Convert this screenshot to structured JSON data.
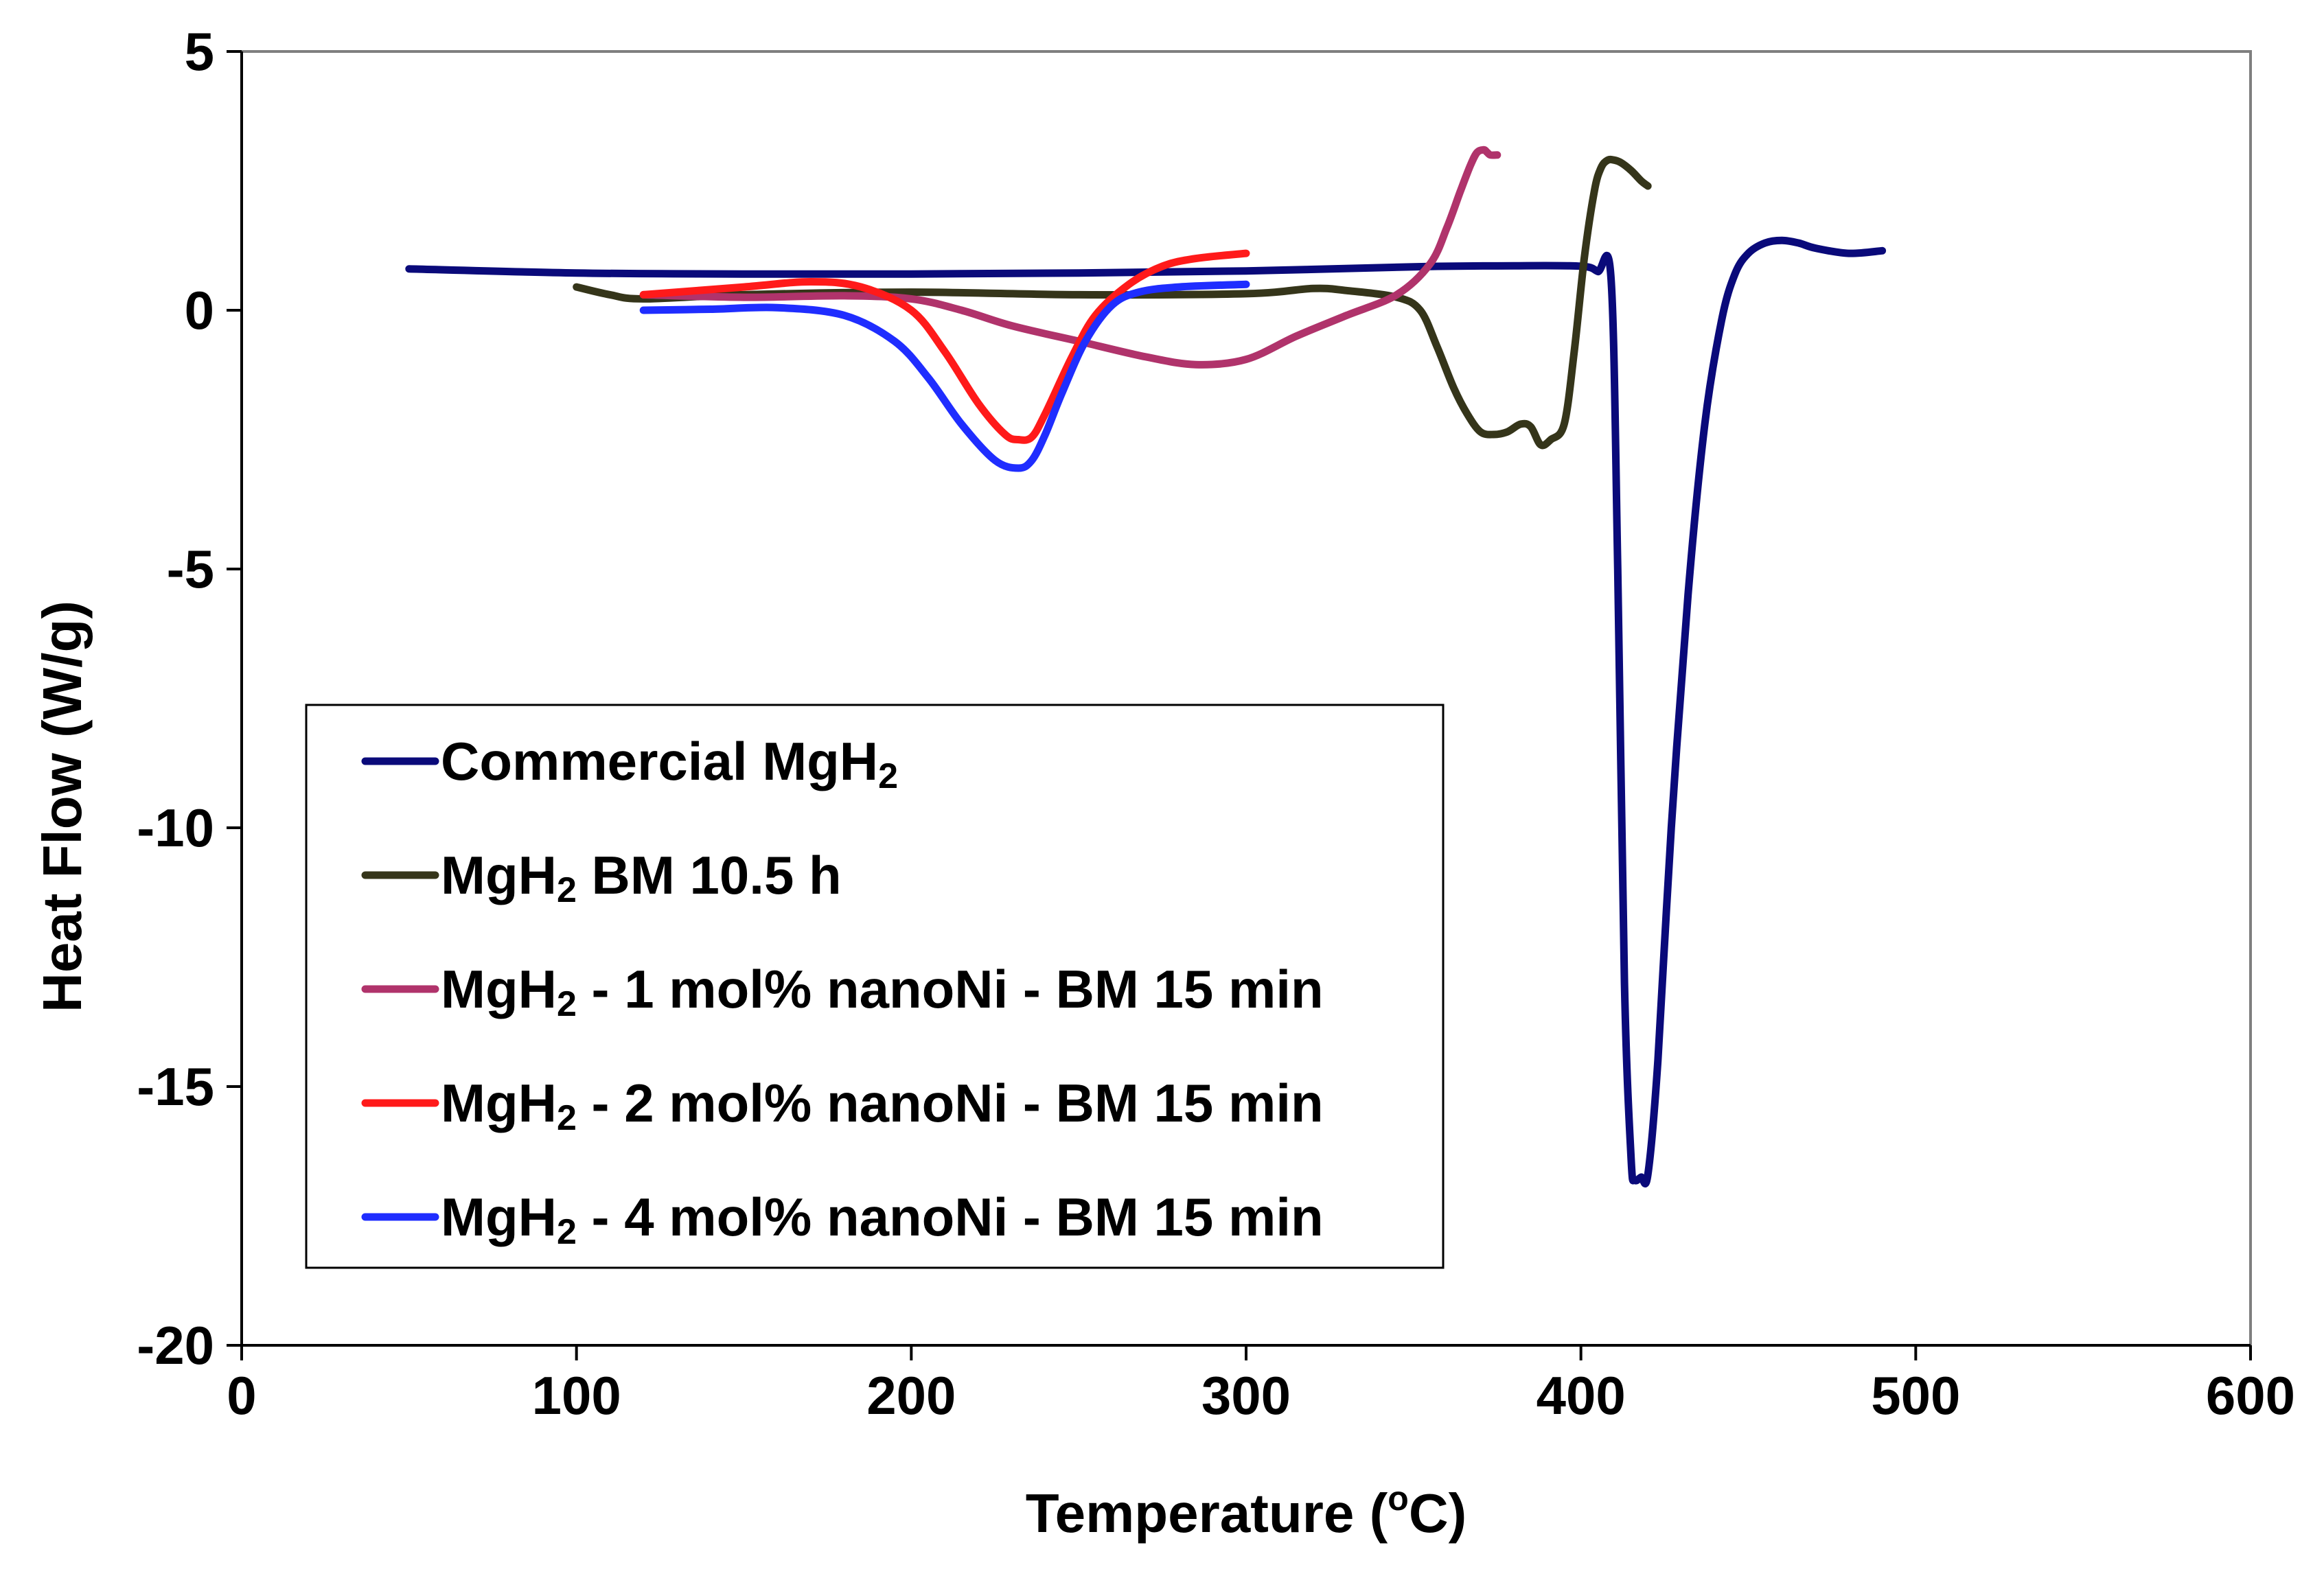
{
  "chart_data": {
    "type": "line",
    "title": "",
    "xlabel": "Temperature (",
    "xlabel_sup": "o",
    "xlabel_end": "C)",
    "ylabel": "Heat Flow (W/g)",
    "xlim": [
      0,
      600
    ],
    "ylim": [
      -20,
      5
    ],
    "xticks": [
      0,
      100,
      200,
      300,
      400,
      500,
      600
    ],
    "yticks": [
      5,
      0,
      -5,
      -10,
      -15,
      -20
    ],
    "grid": false,
    "legend_position": "lower-left",
    "series": [
      {
        "name": "Commercial MgH",
        "sub": "2",
        "suffix": "",
        "color": "#0a0a7a",
        "x": [
          50,
          100,
          150,
          200,
          250,
          300,
          350,
          380,
          400,
          405,
          409,
          411,
          413,
          415,
          416,
          418,
          420,
          423,
          427,
          432,
          437,
          442,
          446,
          450,
          455,
          460,
          465,
          470,
          480,
          490
        ],
        "y": [
          0.8,
          0.72,
          0.7,
          0.7,
          0.72,
          0.76,
          0.84,
          0.86,
          0.85,
          0.75,
          0.6,
          -5,
          -13,
          -16.4,
          -16.8,
          -16.75,
          -16.7,
          -14.5,
          -10,
          -5.5,
          -2.2,
          -0.2,
          0.7,
          1.1,
          1.3,
          1.35,
          1.3,
          1.2,
          1.1,
          1.15
        ]
      },
      {
        "name": "MgH",
        "sub": "2",
        "suffix": " BM 10.5 h",
        "color": "#35351a",
        "x": [
          100,
          110,
          120,
          150,
          200,
          250,
          300,
          320,
          330,
          345,
          352,
          357,
          362,
          366,
          370,
          374,
          378,
          382,
          385,
          388,
          391,
          395,
          398,
          401,
          404,
          406,
          408,
          410,
          412,
          415,
          418,
          420
        ],
        "y": [
          0.45,
          0.3,
          0.22,
          0.3,
          0.35,
          0.3,
          0.32,
          0.42,
          0.38,
          0.25,
          0.0,
          -0.7,
          -1.5,
          -2.0,
          -2.35,
          -2.4,
          -2.35,
          -2.2,
          -2.25,
          -2.6,
          -2.5,
          -2.2,
          -0.8,
          1.0,
          2.3,
          2.75,
          2.9,
          2.9,
          2.85,
          2.7,
          2.5,
          2.4
        ]
      },
      {
        "name": "MgH",
        "sub": "2",
        "suffix": " - 1 mol% nanoNi - BM 15 min",
        "color": "#b0336b",
        "x": [
          120,
          150,
          180,
          200,
          215,
          230,
          250,
          270,
          285,
          300,
          315,
          330,
          345,
          355,
          360,
          364,
          367,
          369,
          371,
          372,
          373,
          375
        ],
        "y": [
          0.3,
          0.25,
          0.28,
          0.22,
          0.0,
          -0.3,
          -0.6,
          -0.9,
          -1.05,
          -0.95,
          -0.5,
          -0.1,
          0.3,
          0.9,
          1.6,
          2.3,
          2.8,
          3.05,
          3.1,
          3.05,
          3.0,
          3.0
        ]
      },
      {
        "name": "MgH",
        "sub": "2",
        "suffix": " - 2 mol% nanoNi - BM 15 min",
        "color": "#ff1a1a",
        "x": [
          120,
          150,
          170,
          185,
          200,
          210,
          220,
          228,
          232,
          236,
          240,
          248,
          255,
          265,
          275,
          285,
          300
        ],
        "y": [
          0.3,
          0.45,
          0.55,
          0.45,
          0.0,
          -0.8,
          -1.8,
          -2.4,
          -2.5,
          -2.45,
          -2.0,
          -0.9,
          -0.1,
          0.5,
          0.85,
          1.0,
          1.1
        ]
      },
      {
        "name": "MgH",
        "sub": "2",
        "suffix": " - 4 mol% nanoNi - BM 15 min",
        "color": "#1f2dff",
        "x": [
          120,
          140,
          160,
          180,
          195,
          205,
          215,
          225,
          232,
          236,
          240,
          245,
          252,
          260,
          268,
          280,
          300
        ],
        "y": [
          0.0,
          0.02,
          0.05,
          -0.1,
          -0.6,
          -1.3,
          -2.2,
          -2.9,
          -3.05,
          -2.9,
          -2.4,
          -1.6,
          -0.6,
          0.1,
          0.35,
          0.45,
          0.5
        ]
      }
    ]
  }
}
